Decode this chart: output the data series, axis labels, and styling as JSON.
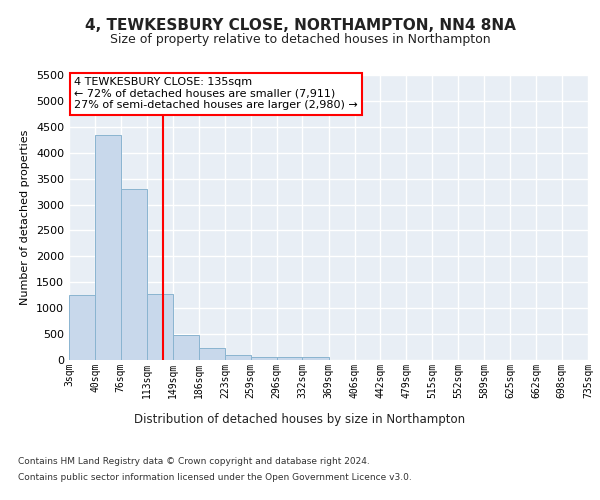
{
  "title": "4, TEWKESBURY CLOSE, NORTHAMPTON, NN4 8NA",
  "subtitle": "Size of property relative to detached houses in Northampton",
  "xlabel": "Distribution of detached houses by size in Northampton",
  "ylabel": "Number of detached properties",
  "bar_values": [
    1260,
    4350,
    3300,
    1280,
    480,
    225,
    90,
    60,
    50,
    50,
    0,
    0,
    0,
    0,
    0,
    0,
    0,
    0,
    0,
    0
  ],
  "bin_edges": [
    3,
    40,
    76,
    113,
    149,
    186,
    223,
    259,
    296,
    332,
    369,
    406,
    442,
    479,
    515,
    552,
    589,
    625,
    662,
    698,
    735
  ],
  "tick_labels": [
    "3sqm",
    "40sqm",
    "76sqm",
    "113sqm",
    "149sqm",
    "186sqm",
    "223sqm",
    "259sqm",
    "296sqm",
    "332sqm",
    "369sqm",
    "406sqm",
    "442sqm",
    "479sqm",
    "515sqm",
    "552sqm",
    "589sqm",
    "625sqm",
    "662sqm",
    "698sqm",
    "735sqm"
  ],
  "bar_color": "#c8d8eb",
  "bar_edge_color": "#8ab4d0",
  "background_color": "#e8eef5",
  "grid_color": "#ffffff",
  "red_line_x": 135,
  "ylim": [
    0,
    5500
  ],
  "yticks": [
    0,
    500,
    1000,
    1500,
    2000,
    2500,
    3000,
    3500,
    4000,
    4500,
    5000,
    5500
  ],
  "annotation_text": "4 TEWKESBURY CLOSE: 135sqm\n← 72% of detached houses are smaller (7,911)\n27% of semi-detached houses are larger (2,980) →",
  "footer_line1": "Contains HM Land Registry data © Crown copyright and database right 2024.",
  "footer_line2": "Contains public sector information licensed under the Open Government Licence v3.0."
}
